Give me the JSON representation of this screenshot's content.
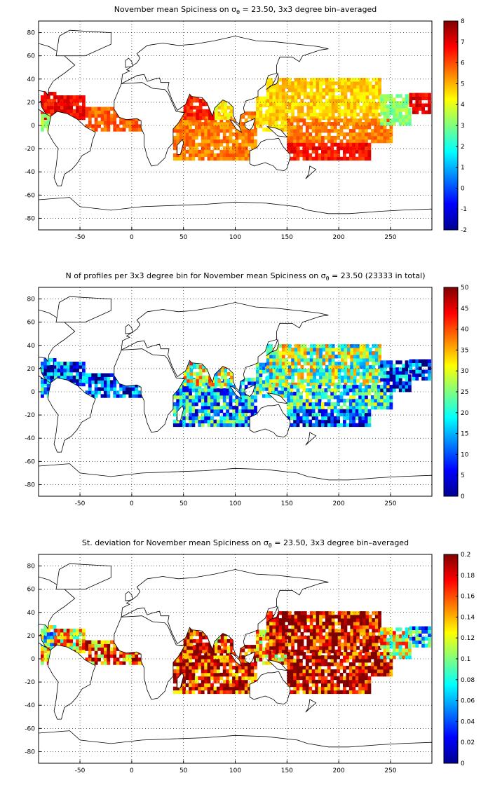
{
  "figure": {
    "panels": [
      {
        "title_main": "November mean Spiciness on ",
        "title_sigma": "σ",
        "title_sub": "θ",
        "title_rest": " = 23.50, 3x3 degree bin–averaged"
      },
      {
        "title_main": "N of profiles per 3x3 degree bin for November mean Spiciness on ",
        "title_sigma": "σ",
        "title_sub": "θ",
        "title_rest": " = 23.50 (23333 in total)"
      },
      {
        "title_main": "St. deviation for November mean Spiciness on ",
        "title_sigma": "σ",
        "title_sub": "θ",
        "title_rest": " = 23.50, 3x3 degree bin–averaged"
      }
    ],
    "colormap": "jet"
  },
  "chart_data": [
    {
      "type": "heatmap",
      "title": "November mean Spiciness on σθ = 23.50, 3x3 degree bin–averaged",
      "xlim": [
        -90,
        290
      ],
      "ylim": [
        -90,
        90
      ],
      "xticks": [
        -50,
        0,
        50,
        100,
        150,
        200,
        250
      ],
      "yticks": [
        -80,
        -60,
        -40,
        -20,
        0,
        20,
        40,
        60,
        80
      ],
      "grid": true,
      "colorbar": {
        "range": [
          -2,
          8
        ],
        "ticks": [
          -2,
          -1,
          0,
          1,
          2,
          3,
          4,
          5,
          6,
          7,
          8
        ]
      },
      "regions": [
        {
          "name": "",
          "lon": [
            -88,
            -75
          ],
          "lat": [
            5,
            28
          ],
          "value": 6.6
        },
        {
          "name": "",
          "lon": [
            -88,
            -80
          ],
          "lat": [
            -5,
            8
          ],
          "value": 3.4
        },
        {
          "name": "",
          "lon": [
            -75,
            -45
          ],
          "lat": [
            5,
            25
          ],
          "value": 6.8
        },
        {
          "name": "",
          "lon": [
            -45,
            10
          ],
          "lat": [
            -5,
            15
          ],
          "value": 5.8
        },
        {
          "name": "",
          "lon": [
            40,
            120
          ],
          "lat": [
            -30,
            10
          ],
          "value": 5.5
        },
        {
          "name": "",
          "lon": [
            50,
            78
          ],
          "lat": [
            5,
            28
          ],
          "value": 6.5
        },
        {
          "name": "",
          "lon": [
            80,
            98
          ],
          "lat": [
            5,
            22
          ],
          "value": 4.3
        },
        {
          "name": "",
          "lon": [
            120,
            150
          ],
          "lat": [
            -5,
            25
          ],
          "value": 4.6
        },
        {
          "name": "",
          "lon": [
            130,
            240
          ],
          "lat": [
            5,
            40
          ],
          "value": 4.7
        },
        {
          "name": "",
          "lon": [
            150,
            250
          ],
          "lat": [
            -15,
            5
          ],
          "value": 5.5
        },
        {
          "name": "",
          "lon": [
            150,
            230
          ],
          "lat": [
            -30,
            -15
          ],
          "value": 6.6
        },
        {
          "name": "",
          "lon": [
            240,
            268
          ],
          "lat": [
            0,
            25
          ],
          "value": 3.2
        },
        {
          "name": "",
          "lon": [
            268,
            288
          ],
          "lat": [
            10,
            28
          ],
          "value": 6.9
        }
      ]
    },
    {
      "type": "heatmap",
      "title": "N of profiles per 3x3 degree bin for November mean Spiciness on σθ = 23.50 (23333 in total)",
      "xlim": [
        -90,
        290
      ],
      "ylim": [
        -90,
        90
      ],
      "xticks": [
        -50,
        0,
        50,
        100,
        150,
        200,
        250
      ],
      "yticks": [
        -80,
        -60,
        -40,
        -20,
        0,
        20,
        40,
        60,
        80
      ],
      "grid": true,
      "colorbar": {
        "range": [
          0,
          50
        ],
        "ticks": [
          0,
          5,
          10,
          15,
          20,
          25,
          30,
          35,
          40,
          45,
          50
        ]
      },
      "total_profiles": 23333,
      "regions": [
        {
          "name": "",
          "lon": [
            -88,
            -75
          ],
          "lat": [
            5,
            28
          ],
          "value": 6
        },
        {
          "name": "",
          "lon": [
            -88,
            -80
          ],
          "lat": [
            -5,
            8
          ],
          "value": 15
        },
        {
          "name": "",
          "lon": [
            -75,
            -45
          ],
          "lat": [
            5,
            25
          ],
          "value": 8
        },
        {
          "name": "",
          "lon": [
            -45,
            10
          ],
          "lat": [
            -5,
            15
          ],
          "value": 6
        },
        {
          "name": "",
          "lon": [
            40,
            120
          ],
          "lat": [
            -30,
            10
          ],
          "value": 14
        },
        {
          "name": "",
          "lon": [
            50,
            78
          ],
          "lat": [
            5,
            28
          ],
          "value": 28
        },
        {
          "name": "",
          "lon": [
            80,
            98
          ],
          "lat": [
            5,
            22
          ],
          "value": 24
        },
        {
          "name": "",
          "lon": [
            120,
            150
          ],
          "lat": [
            -5,
            25
          ],
          "value": 20
        },
        {
          "name": "",
          "lon": [
            130,
            240
          ],
          "lat": [
            5,
            40
          ],
          "value": 24
        },
        {
          "name": "",
          "lon": [
            150,
            250
          ],
          "lat": [
            -15,
            5
          ],
          "value": 18
        },
        {
          "name": "",
          "lon": [
            150,
            230
          ],
          "lat": [
            -30,
            -15
          ],
          "value": 9
        },
        {
          "name": "",
          "lon": [
            240,
            268
          ],
          "lat": [
            0,
            25
          ],
          "value": 8
        },
        {
          "name": "",
          "lon": [
            268,
            288
          ],
          "lat": [
            10,
            28
          ],
          "value": 5
        }
      ]
    },
    {
      "type": "heatmap",
      "title": "St. deviation for November mean Spiciness on σθ = 23.50, 3x3 degree bin–averaged",
      "xlim": [
        -90,
        290
      ],
      "ylim": [
        -90,
        90
      ],
      "xticks": [
        -50,
        0,
        50,
        100,
        150,
        200,
        250
      ],
      "yticks": [
        -80,
        -60,
        -40,
        -20,
        0,
        20,
        40,
        60,
        80
      ],
      "grid": true,
      "colorbar": {
        "range": [
          0,
          0.2
        ],
        "ticks": [
          0,
          0.02,
          0.04,
          0.06,
          0.08,
          0.1,
          0.12,
          0.14,
          0.16,
          0.18,
          0.2
        ]
      },
      "regions": [
        {
          "name": "",
          "lon": [
            -88,
            -75
          ],
          "lat": [
            5,
            28
          ],
          "value": 0.09
        },
        {
          "name": "",
          "lon": [
            -88,
            -80
          ],
          "lat": [
            -5,
            8
          ],
          "value": 0.15
        },
        {
          "name": "",
          "lon": [
            -75,
            -45
          ],
          "lat": [
            5,
            25
          ],
          "value": 0.14
        },
        {
          "name": "",
          "lon": [
            -45,
            10
          ],
          "lat": [
            -5,
            15
          ],
          "value": 0.16
        },
        {
          "name": "",
          "lon": [
            40,
            120
          ],
          "lat": [
            -30,
            10
          ],
          "value": 0.18
        },
        {
          "name": "",
          "lon": [
            50,
            78
          ],
          "lat": [
            5,
            28
          ],
          "value": 0.19
        },
        {
          "name": "",
          "lon": [
            80,
            98
          ],
          "lat": [
            5,
            22
          ],
          "value": 0.16
        },
        {
          "name": "",
          "lon": [
            120,
            150
          ],
          "lat": [
            -5,
            25
          ],
          "value": 0.15
        },
        {
          "name": "",
          "lon": [
            130,
            240
          ],
          "lat": [
            5,
            40
          ],
          "value": 0.19
        },
        {
          "name": "",
          "lon": [
            150,
            250
          ],
          "lat": [
            -15,
            5
          ],
          "value": 0.19
        },
        {
          "name": "",
          "lon": [
            150,
            230
          ],
          "lat": [
            -30,
            -15
          ],
          "value": 0.19
        },
        {
          "name": "",
          "lon": [
            240,
            268
          ],
          "lat": [
            0,
            25
          ],
          "value": 0.13
        },
        {
          "name": "",
          "lon": [
            268,
            288
          ],
          "lat": [
            10,
            28
          ],
          "value": 0.07
        }
      ]
    }
  ]
}
